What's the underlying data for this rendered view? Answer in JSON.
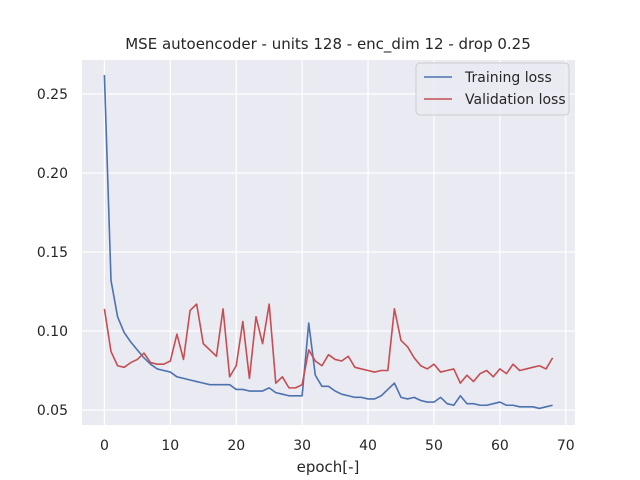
{
  "chart_data": {
    "type": "line",
    "title": "MSE autoencoder - units 128 - enc_dim 12 - drop 0.25",
    "xlabel": "epoch[-]",
    "ylabel": "",
    "xlim": [
      -3.4,
      71.4
    ],
    "ylim": [
      0.0405,
      0.2715
    ],
    "xticks": [
      0,
      10,
      20,
      30,
      40,
      50,
      60,
      70
    ],
    "xtick_labels": [
      "0",
      "10",
      "20",
      "30",
      "40",
      "50",
      "60",
      "70"
    ],
    "yticks": [
      0.05,
      0.1,
      0.15,
      0.2,
      0.25
    ],
    "ytick_labels": [
      "0.05",
      "0.10",
      "0.15",
      "0.20",
      "0.25"
    ],
    "grid": true,
    "legend_position": "top-right",
    "x": [
      0,
      1,
      2,
      3,
      4,
      5,
      6,
      7,
      8,
      9,
      10,
      11,
      12,
      13,
      14,
      15,
      16,
      17,
      18,
      19,
      20,
      21,
      22,
      23,
      24,
      25,
      26,
      27,
      28,
      29,
      30,
      31,
      32,
      33,
      34,
      35,
      36,
      37,
      38,
      39,
      40,
      41,
      42,
      43,
      44,
      45,
      46,
      47,
      48,
      49,
      50,
      51,
      52,
      53,
      54,
      55,
      56,
      57,
      58,
      59,
      60,
      61,
      62,
      63,
      64,
      65,
      66,
      67,
      68
    ],
    "series": [
      {
        "name": "Training loss",
        "color": "#4c72b0",
        "values": [
          0.262,
          0.132,
          0.109,
          0.099,
          0.093,
          0.088,
          0.083,
          0.079,
          0.076,
          0.075,
          0.074,
          0.071,
          0.07,
          0.069,
          0.068,
          0.067,
          0.066,
          0.066,
          0.066,
          0.066,
          0.063,
          0.063,
          0.062,
          0.062,
          0.062,
          0.064,
          0.061,
          0.06,
          0.059,
          0.059,
          0.059,
          0.105,
          0.072,
          0.065,
          0.065,
          0.062,
          0.06,
          0.059,
          0.058,
          0.058,
          0.057,
          0.057,
          0.059,
          0.063,
          0.067,
          0.058,
          0.057,
          0.058,
          0.056,
          0.055,
          0.055,
          0.058,
          0.054,
          0.053,
          0.059,
          0.054,
          0.054,
          0.053,
          0.053,
          0.054,
          0.055,
          0.053,
          0.053,
          0.052,
          0.052,
          0.052,
          0.051,
          0.052,
          0.053
        ]
      },
      {
        "name": "Validation loss",
        "color": "#c44e52",
        "values": [
          0.114,
          0.087,
          0.078,
          0.077,
          0.08,
          0.082,
          0.086,
          0.08,
          0.079,
          0.079,
          0.081,
          0.098,
          0.082,
          0.113,
          0.117,
          0.092,
          0.088,
          0.084,
          0.114,
          0.071,
          0.078,
          0.106,
          0.07,
          0.109,
          0.092,
          0.117,
          0.067,
          0.071,
          0.064,
          0.064,
          0.066,
          0.088,
          0.081,
          0.078,
          0.085,
          0.082,
          0.081,
          0.084,
          0.077,
          0.076,
          0.075,
          0.074,
          0.075,
          0.075,
          0.114,
          0.094,
          0.09,
          0.083,
          0.078,
          0.076,
          0.079,
          0.074,
          0.075,
          0.076,
          0.067,
          0.072,
          0.068,
          0.073,
          0.075,
          0.071,
          0.076,
          0.073,
          0.079,
          0.075,
          0.076,
          0.077,
          0.078,
          0.076,
          0.083
        ]
      }
    ]
  }
}
